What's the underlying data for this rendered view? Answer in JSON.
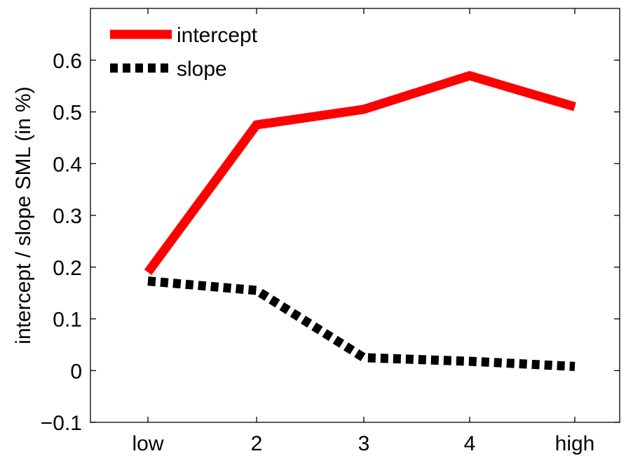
{
  "chart_data": {
    "type": "line",
    "categories": [
      "low",
      "2",
      "3",
      "4",
      "high"
    ],
    "series": [
      {
        "name": "intercept",
        "values": [
          0.19,
          0.475,
          0.505,
          0.57,
          0.51
        ],
        "color": "#ff0000",
        "style": "solid"
      },
      {
        "name": "slope",
        "values": [
          0.173,
          0.155,
          0.025,
          0.018,
          0.008
        ],
        "color": "#000000",
        "style": "dashed"
      }
    ],
    "title": "",
    "xlabel": "",
    "ylabel": "intercept / slope SML (in %)",
    "ylim": [
      -0.1,
      0.7
    ],
    "yticks": [
      "−0.1",
      "0",
      "0.1",
      "0.2",
      "0.3",
      "0.4",
      "0.5",
      "0.6"
    ],
    "ytick_values": [
      -0.1,
      0,
      0.1,
      0.2,
      0.3,
      0.4,
      0.5,
      0.6
    ],
    "grid": false,
    "legend_position": "top-left"
  }
}
